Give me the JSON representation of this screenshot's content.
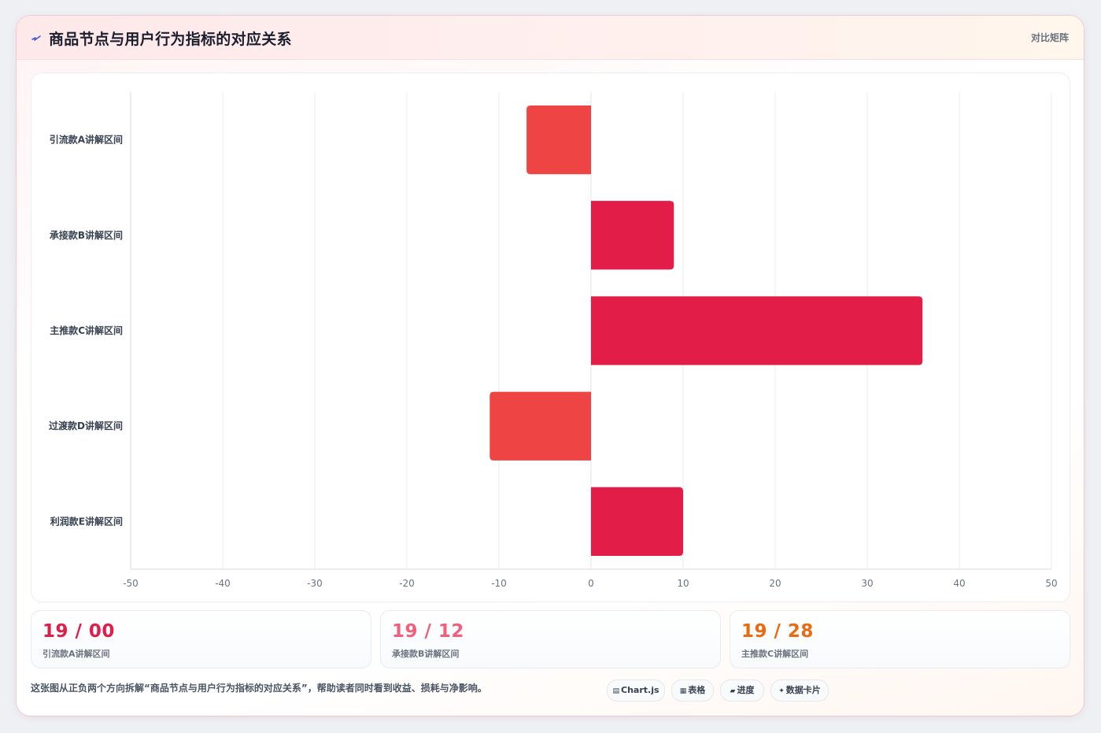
{
  "header": {
    "title": "商品节点与用户行为指标的对应关系",
    "right_label": "对比矩阵",
    "icon": "pulse-icon"
  },
  "chart_data": {
    "type": "bar",
    "orientation": "horizontal",
    "categories": [
      "引流款A讲解区间",
      "承接款B讲解区间",
      "主推款C讲解区间",
      "过渡款D讲解区间",
      "利润款E讲解区间"
    ],
    "values": [
      -7,
      9,
      36,
      -11,
      10
    ],
    "xlim": [
      -50,
      50
    ],
    "xticks": [
      -50,
      -40,
      -30,
      -20,
      -10,
      0,
      10,
      20,
      30,
      40,
      50
    ],
    "grid": true,
    "legend": "none",
    "colors": {
      "positive": "#e11d48",
      "negative": "#ef4444"
    }
  },
  "stats": [
    {
      "value": "19 / 00",
      "label": "引流款A讲解区间",
      "color": "#e11d48"
    },
    {
      "value": "19 / 12",
      "label": "承接款B讲解区间",
      "color": "#f0607a"
    },
    {
      "value": "19 / 28",
      "label": "主推款C讲解区间",
      "color": "#ea6a12"
    }
  ],
  "footer": {
    "note": "这张图从正负两个方向拆解“商品节点与用户行为指标的对应关系”，帮助读者同时看到收益、损耗与净影响。"
  },
  "tags": [
    {
      "icon": "▤",
      "label": "Chart.js"
    },
    {
      "icon": "▦",
      "label": "表格"
    },
    {
      "icon": "▰",
      "label": "进度"
    },
    {
      "icon": "✦",
      "label": "数据卡片"
    }
  ]
}
